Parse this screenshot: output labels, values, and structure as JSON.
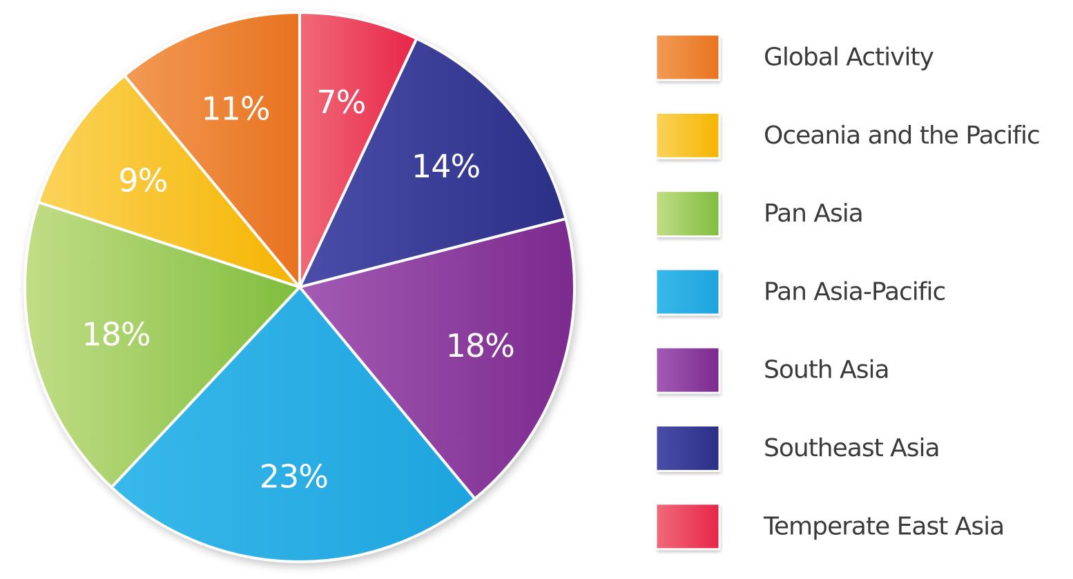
{
  "chart_data": {
    "type": "pie",
    "start": "top",
    "direction": "clockwise",
    "slices": [
      {
        "label": "Temperate East Asia",
        "value": 7,
        "display": "7%",
        "color": "#e8254a",
        "color_light": "#f06a78"
      },
      {
        "label": "Southeast Asia",
        "value": 14,
        "display": "14%",
        "color": "#2c2f86",
        "color_light": "#4a4ea8"
      },
      {
        "label": "South Asia",
        "value": 18,
        "display": "18%",
        "color": "#7b2a8e",
        "color_light": "#a35bb4"
      },
      {
        "label": "Pan Asia-Pacific",
        "value": 23,
        "display": "23%",
        "color": "#1ea4de",
        "color_light": "#38b8ea"
      },
      {
        "label": "Pan Asia",
        "value": 18,
        "display": "18%",
        "color": "#7fbd3e",
        "color_light": "#c2dd86"
      },
      {
        "label": "Oceania and the Pacific",
        "value": 9,
        "display": "9%",
        "color": "#f5b400",
        "color_light": "#fbd35a"
      },
      {
        "label": "Global Activity",
        "value": 11,
        "display": "11%",
        "color": "#e8731f",
        "color_light": "#f29a55"
      }
    ],
    "legend": {
      "placement": "right",
      "items": [
        {
          "label": "Global Activity",
          "color": "#e8731f",
          "color_light": "#f29a55"
        },
        {
          "label": "Oceania and the Pacific",
          "color": "#f5b400",
          "color_light": "#fbd35a"
        },
        {
          "label": "Pan Asia",
          "color": "#7fbd3e",
          "color_light": "#c2dd86"
        },
        {
          "label": "Pan Asia-Pacific",
          "color": "#1ea4de",
          "color_light": "#38b8ea"
        },
        {
          "label": "South Asia",
          "color": "#7b2a8e",
          "color_light": "#a35bb4"
        },
        {
          "label": "Southeast Asia",
          "color": "#2c2f86",
          "color_light": "#4a4ea8"
        },
        {
          "label": "Temperate East Asia",
          "color": "#e8254a",
          "color_light": "#f06a78"
        }
      ]
    }
  }
}
